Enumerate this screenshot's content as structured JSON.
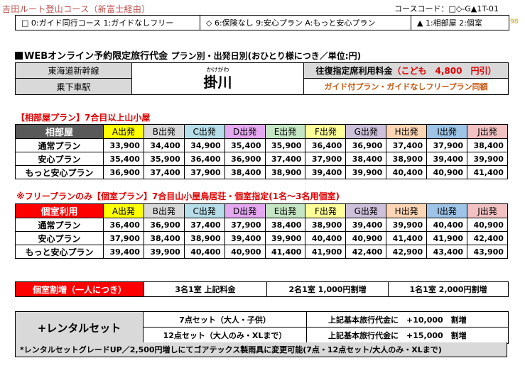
{
  "header": {
    "title": "吉田ルート登山コース（新富士経由）",
    "course_code": "コースコード：□◇-G▲1T-01",
    "page_number": "98"
  },
  "legend": [
    "□ 0:ガイド同行コース  1:ガイドなしフリー",
    "◇ 6:保険なし 9:安心プラン A:もっと安心プラン",
    "▲ 1:相部屋 2:個室"
  ],
  "price_title": {
    "main": "WEBオンライン予約限定旅行代金",
    "sub": "プラン別・出発日別(おひとり様につき／単位:円)"
  },
  "info": {
    "line_label": "東海道新幹線",
    "station_label": "乗下車駅",
    "station_ruby": "かけがわ",
    "station_name": "掛川",
    "fare_label": "往復指定席利用料金",
    "child_fare": "（こども　4,800　円引）",
    "same_price_note": "ガイド付プラン・ガイドなしフリープラン同額"
  },
  "section1": {
    "title": "【相部屋プラン】7合目以上山小屋",
    "head": "相部屋",
    "columns": [
      "A出発",
      "B出発",
      "C出発",
      "D出発",
      "E出発",
      "F出発",
      "G出発",
      "H出発",
      "I出発",
      "J出発"
    ],
    "rows": [
      {
        "label": "通常プラン",
        "values": [
          "33,900",
          "34,400",
          "34,900",
          "35,400",
          "35,900",
          "36,400",
          "36,900",
          "37,400",
          "37,900",
          "38,400"
        ]
      },
      {
        "label": "安心プラン",
        "values": [
          "35,400",
          "35,900",
          "36,400",
          "36,900",
          "37,400",
          "37,900",
          "38,400",
          "38,900",
          "39,400",
          "39,900"
        ]
      },
      {
        "label": "もっと安心プラン",
        "values": [
          "36,900",
          "37,400",
          "37,900",
          "38,400",
          "38,900",
          "39,400",
          "39,900",
          "40,400",
          "40,900",
          "41,400"
        ]
      }
    ]
  },
  "section2": {
    "title": "※フリープランのみ【個室プラン】7合目山小屋鳥居荘・個室指定(1名～3名用個室)",
    "head": "個室利用",
    "columns": [
      "A出発",
      "B出発",
      "C出発",
      "D出発",
      "E出発",
      "F出発",
      "G出発",
      "H出発",
      "I出発",
      "J出発"
    ],
    "rows": [
      {
        "label": "通常プラン",
        "values": [
          "36,400",
          "36,900",
          "37,400",
          "37,900",
          "38,400",
          "38,900",
          "39,400",
          "39,900",
          "40,400",
          "40,900"
        ]
      },
      {
        "label": "安心プラン",
        "values": [
          "37,900",
          "38,400",
          "38,900",
          "39,400",
          "39,900",
          "40,400",
          "40,900",
          "41,400",
          "41,900",
          "42,400"
        ]
      },
      {
        "label": "もっと安心プラン",
        "values": [
          "39,400",
          "39,900",
          "40,400",
          "40,900",
          "41,400",
          "41,900",
          "42,400",
          "42,900",
          "43,400",
          "43,900"
        ]
      }
    ]
  },
  "surcharge": {
    "label": "個室割増（一人につき）",
    "opt1": "3名1室 上記料金",
    "opt2": "2名1室 1,000円割増",
    "opt3": "1名1室 2,000円割増"
  },
  "rental": {
    "label": "+レンタルセット",
    "set7": "7点セット（大人・子供）",
    "set12": "12点セット（大人のみ・XLまで）",
    "price7": "上記基本旅行代金に　+10,000　割増",
    "price12": "上記基本旅行代金に　+15,000　割増",
    "note": "*レンタルセットグレードUP／2,500円増しにてゴアテックス製雨具に変更可能(7点・12点セット/大人のみ・XLまで)"
  },
  "colors": {
    "A": "#ffff00",
    "B": "#d9d9d9",
    "C": "#b7dee8",
    "D": "#e4a8f0",
    "E": "#c4e6c4",
    "F": "#ffff99",
    "G": "#ccc0da",
    "H": "#fcd5b4",
    "I": "#9dc3e6",
    "J": "#f2c2c2",
    "head_dark": "#595959",
    "head_red": "#ff0000",
    "title_red": "#e00000",
    "child_fare_red": "#e00000",
    "note_orange": "#c65911"
  }
}
